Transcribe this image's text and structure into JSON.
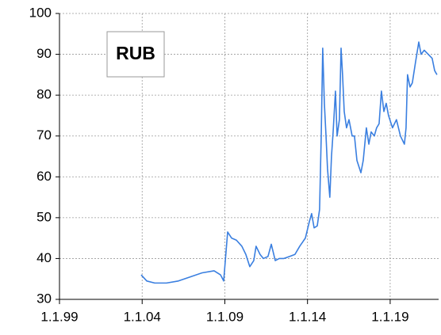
{
  "chart_data": {
    "type": "line",
    "title": "RUB",
    "x": [
      2003.94,
      2004.28,
      2004.76,
      2005.47,
      2006.19,
      2006.91,
      2007.63,
      2008.35,
      2008.74,
      2008.93,
      2009.17,
      2009.41,
      2009.7,
      2010.03,
      2010.27,
      2010.51,
      2010.75,
      2010.89,
      2011.13,
      2011.33,
      2011.61,
      2011.81,
      2012.05,
      2012.29,
      2012.57,
      2012.91,
      2013.24,
      2013.53,
      2013.87,
      2014.11,
      2014.25,
      2014.4,
      2014.59,
      2014.73,
      2014.83,
      2014.92,
      2015.02,
      2015.12,
      2015.21,
      2015.35,
      2015.45,
      2015.55,
      2015.69,
      2015.79,
      2015.93,
      2016.03,
      2016.12,
      2016.22,
      2016.36,
      2016.51,
      2016.7,
      2016.84,
      2016.99,
      2017.23,
      2017.37,
      2017.56,
      2017.71,
      2017.85,
      2018.04,
      2018.18,
      2018.33,
      2018.47,
      2018.62,
      2018.76,
      2018.9,
      2019.14,
      2019.38,
      2019.62,
      2019.86,
      2019.96,
      2020.05,
      2020.2,
      2020.34,
      2020.53,
      2020.73,
      2020.87,
      2021.06,
      2021.3,
      2021.54,
      2021.69,
      2021.83
    ],
    "series": [
      {
        "name": "RUB",
        "color": "#3a7fe0",
        "values": [
          36,
          34.5,
          34,
          34,
          34.5,
          35.5,
          36.5,
          37,
          36,
          34.5,
          46.5,
          45,
          44.5,
          43,
          41,
          38,
          39.5,
          43,
          41,
          40,
          40.5,
          43.5,
          39.5,
          40,
          40,
          40.5,
          41,
          43,
          45,
          49,
          51,
          47.5,
          48,
          52,
          70,
          91.5,
          78,
          70,
          62,
          55,
          65,
          71,
          81,
          70,
          74,
          91.5,
          85,
          76,
          72,
          74,
          70,
          70,
          64,
          61,
          64,
          72,
          68,
          71,
          70,
          72,
          73,
          81,
          76,
          78,
          75,
          72,
          74,
          70,
          68,
          72,
          85,
          82,
          83,
          88,
          93,
          90,
          91,
          90,
          89,
          86,
          85
        ]
      }
    ],
    "xlim": [
      1999,
      2021.93
    ],
    "xticks": [
      {
        "value": 1999,
        "label": "1.1.99"
      },
      {
        "value": 2004,
        "label": "1.1.04"
      },
      {
        "value": 2009,
        "label": "1.1.09"
      },
      {
        "value": 2014,
        "label": "1.1.14"
      },
      {
        "value": 2019,
        "label": "1.1.19"
      }
    ],
    "ylim": [
      30,
      100
    ],
    "yticks": [
      30,
      40,
      50,
      60,
      70,
      80,
      90,
      100
    ],
    "grid": true
  }
}
